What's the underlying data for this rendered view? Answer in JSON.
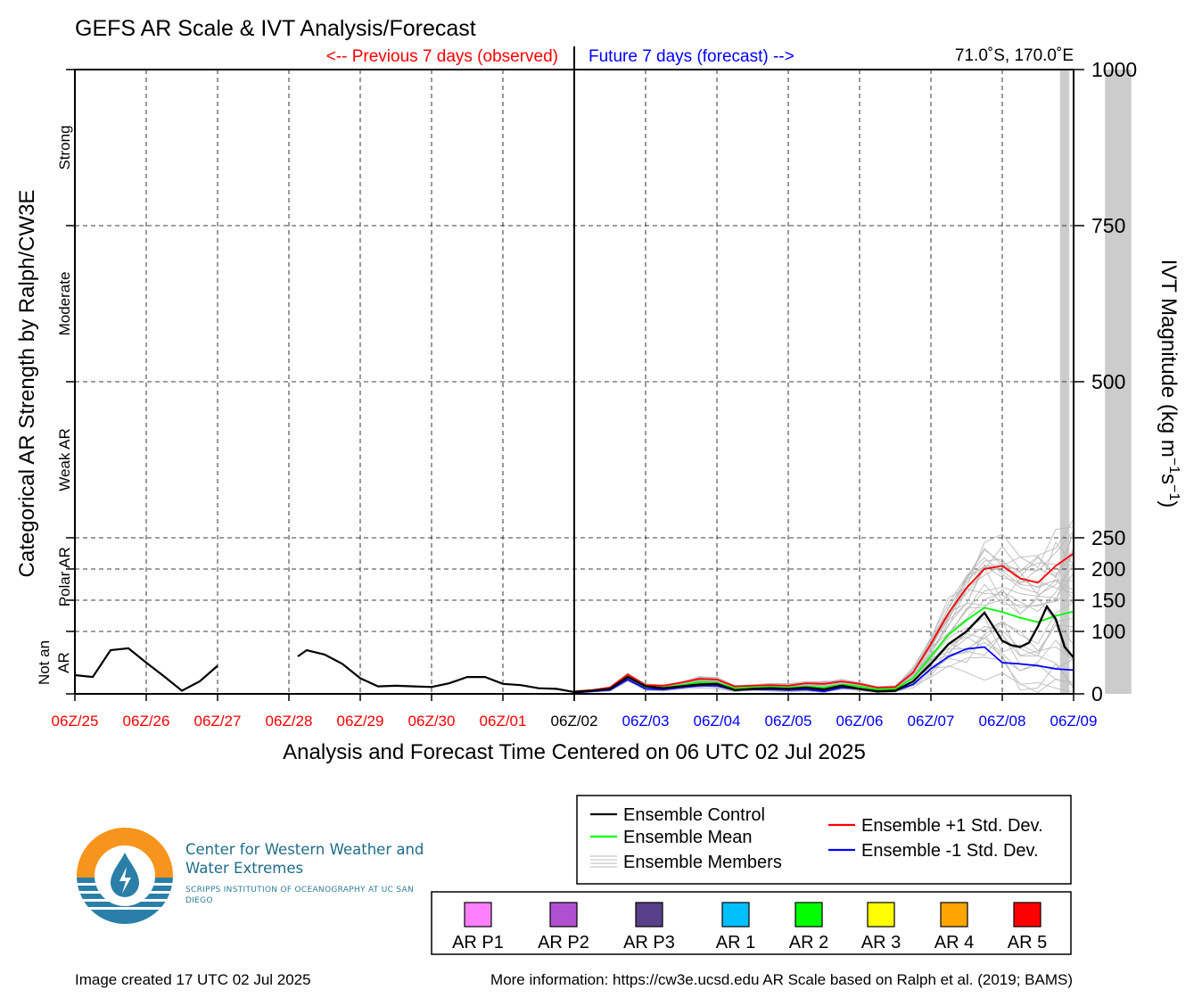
{
  "chart_data": {
    "type": "line",
    "title": "GEFS AR Scale & IVT Analysis/Forecast",
    "previous_label": "<-- Previous 7 days (observed)",
    "future_label": "Future 7 days (forecast) -->",
    "location": "71.0˚S, 170.0˚E",
    "xlabel": "Analysis and Forecast Time Centered on 06 UTC 02 Jul 2025",
    "ylabel_left": "Categorical AR Strength by Ralph/CW3E",
    "ylabel_right_base": "IVT Magnitude (kg m",
    "ylabel_right_sup1": "−1",
    "ylabel_right_mid": "s",
    "ylabel_right_sup2": "−1",
    "ylabel_right_end": ")",
    "ylim": [
      0,
      1000
    ],
    "xlim": [
      0,
      14
    ],
    "y_ticks": [
      0,
      100,
      150,
      200,
      250,
      500,
      750,
      1000
    ],
    "x_ticks": [
      {
        "label": "06Z/25",
        "t": 0,
        "color": "#ff0000"
      },
      {
        "label": "06Z/26",
        "t": 1,
        "color": "#ff0000"
      },
      {
        "label": "06Z/27",
        "t": 2,
        "color": "#ff0000"
      },
      {
        "label": "06Z/28",
        "t": 3,
        "color": "#ff0000"
      },
      {
        "label": "06Z/29",
        "t": 4,
        "color": "#ff0000"
      },
      {
        "label": "06Z/30",
        "t": 5,
        "color": "#ff0000"
      },
      {
        "label": "06Z/01",
        "t": 6,
        "color": "#ff0000"
      },
      {
        "label": "06Z/02",
        "t": 7,
        "color": "#000000"
      },
      {
        "label": "06Z/03",
        "t": 8,
        "color": "#0000ff"
      },
      {
        "label": "06Z/04",
        "t": 9,
        "color": "#0000ff"
      },
      {
        "label": "06Z/05",
        "t": 10,
        "color": "#0000ff"
      },
      {
        "label": "06Z/06",
        "t": 11,
        "color": "#0000ff"
      },
      {
        "label": "06Z/07",
        "t": 12,
        "color": "#0000ff"
      },
      {
        "label": "06Z/08",
        "t": 13,
        "color": "#0000ff"
      },
      {
        "label": "06Z/09",
        "t": 14,
        "color": "#0000ff"
      }
    ],
    "categories": [
      {
        "label": "Strong",
        "y0": 750,
        "y1": 1000
      },
      {
        "label": "Moderate",
        "y0": 500,
        "y1": 750
      },
      {
        "label": "Weak AR",
        "y0": 250,
        "y1": 500
      },
      {
        "label": "Polar AR",
        "y0": 125,
        "y1": 250
      },
      {
        "label": "Not an AR",
        "lines": [
          "Not an",
          "AR"
        ],
        "y0": 0,
        "y1": 100
      }
    ],
    "grid": true,
    "shaded_periods": [
      [
        13.81,
        13.94
      ],
      [
        14.44,
        14.81
      ]
    ],
    "observed_segments": [
      [
        [
          0,
          30
        ],
        [
          0.25,
          27
        ],
        [
          0.5,
          70
        ],
        [
          0.75,
          73
        ],
        [
          1.0,
          50
        ],
        [
          1.25,
          28
        ],
        [
          1.5,
          5
        ],
        [
          1.75,
          20
        ],
        [
          2.0,
          45
        ]
      ],
      [
        [
          3.125,
          60
        ],
        [
          3.25,
          70
        ],
        [
          3.5,
          63
        ],
        [
          3.75,
          48
        ],
        [
          4.0,
          25
        ],
        [
          4.25,
          12
        ],
        [
          4.5,
          13
        ],
        [
          4.75,
          12
        ],
        [
          5.0,
          11
        ],
        [
          5.25,
          17
        ],
        [
          5.5,
          27
        ],
        [
          5.75,
          27
        ],
        [
          6.0,
          16
        ],
        [
          6.25,
          14
        ],
        [
          6.5,
          9
        ],
        [
          6.75,
          8
        ],
        [
          7.0,
          3
        ]
      ]
    ],
    "series": [
      {
        "name": "Ensemble Control",
        "color": "#000000",
        "x": [
          7.0,
          7.25,
          7.5,
          7.75,
          8.0,
          8.25,
          8.5,
          8.75,
          9.0,
          9.25,
          9.5,
          9.75,
          10.0,
          10.25,
          10.5,
          10.75,
          11.0,
          11.25,
          11.5,
          11.75,
          12.0,
          12.25,
          12.5,
          12.75,
          13.0,
          13.125,
          13.25,
          13.375,
          13.5,
          13.625,
          13.75,
          13.875,
          14.0
        ],
        "values": [
          3,
          5,
          8,
          27,
          12,
          9,
          12,
          15,
          16,
          6,
          8,
          9,
          8,
          10,
          7,
          13,
          8,
          4,
          5,
          20,
          48,
          80,
          100,
          130,
          85,
          78,
          75,
          82,
          108,
          140,
          120,
          75,
          58
        ]
      },
      {
        "name": "Ensemble Mean",
        "color": "#00ff00",
        "x": [
          7.0,
          7.25,
          7.5,
          7.75,
          8.0,
          8.25,
          8.5,
          8.75,
          9.0,
          9.25,
          9.5,
          9.75,
          10.0,
          10.25,
          10.5,
          10.75,
          11.0,
          11.25,
          11.5,
          11.75,
          12.0,
          12.25,
          12.5,
          12.75,
          13.0,
          13.25,
          13.5,
          13.75,
          14.0
        ],
        "values": [
          3,
          5,
          8,
          27,
          11,
          10,
          14,
          19,
          18,
          9,
          10,
          11,
          10,
          12,
          10,
          15,
          12,
          7,
          8,
          25,
          60,
          95,
          118,
          138,
          131,
          122,
          115,
          125,
          132
        ]
      },
      {
        "name": "Ensemble Members",
        "color": "#bbbbbb"
      },
      {
        "name": "Ensemble +1 Std. Dev.",
        "color": "#ff0000",
        "x": [
          7.0,
          7.25,
          7.5,
          7.75,
          8.0,
          8.25,
          8.5,
          8.75,
          9.0,
          9.25,
          9.5,
          9.75,
          10.0,
          10.25,
          10.5,
          10.75,
          11.0,
          11.25,
          11.5,
          11.75,
          12.0,
          12.25,
          12.5,
          12.75,
          13.0,
          13.25,
          13.5,
          13.75,
          14.0
        ],
        "values": [
          4,
          6,
          10,
          31,
          14,
          13,
          18,
          24,
          23,
          12,
          13,
          14,
          13,
          17,
          16,
          20,
          16,
          10,
          11,
          34,
          80,
          130,
          170,
          200,
          205,
          185,
          178,
          205,
          225
        ]
      },
      {
        "name": "Ensemble -1 Std. Dev.",
        "color": "#0000ff",
        "x": [
          7.0,
          7.25,
          7.5,
          7.75,
          8.0,
          8.25,
          8.5,
          8.75,
          9.0,
          9.25,
          9.5,
          9.75,
          10.0,
          10.25,
          10.5,
          10.75,
          11.0,
          11.25,
          11.5,
          11.75,
          12.0,
          12.25,
          12.5,
          12.75,
          13.0,
          13.25,
          13.5,
          13.75,
          14.0
        ],
        "values": [
          2,
          4,
          6,
          23,
          8,
          7,
          10,
          13,
          13,
          6,
          7,
          7,
          6,
          7,
          4,
          10,
          8,
          4,
          5,
          15,
          40,
          60,
          72,
          75,
          50,
          48,
          45,
          40,
          38
        ]
      }
    ],
    "ar_scale_legend": [
      {
        "label": "AR P1",
        "color": "#ff80ff"
      },
      {
        "label": "AR P2",
        "color": "#b050d0"
      },
      {
        "label": "AR P3",
        "color": "#5a3f8a"
      },
      {
        "label": "AR 1",
        "color": "#00bfff"
      },
      {
        "label": "AR 2",
        "color": "#00ff00"
      },
      {
        "label": "AR 3",
        "color": "#ffff00"
      },
      {
        "label": "AR 4",
        "color": "#ffa500"
      },
      {
        "label": "AR 5",
        "color": "#ff0000"
      }
    ]
  },
  "footer": {
    "created": "Image created 17 UTC 02 Jul 2025",
    "more_info": "More information: https://cw3e.ucsd.edu AR Scale based on Ralph et al. (2019; BAMS)"
  },
  "logo": {
    "name": "Center for Western Weather and Water Extremes",
    "subtitle": "SCRIPPS INSTITUTION OF OCEANOGRAPHY AT UC SAN DIEGO",
    "colors": {
      "orange": "#f7941d",
      "blue": "#2a7fa8",
      "dark_blue": "#1f6c8a"
    }
  }
}
